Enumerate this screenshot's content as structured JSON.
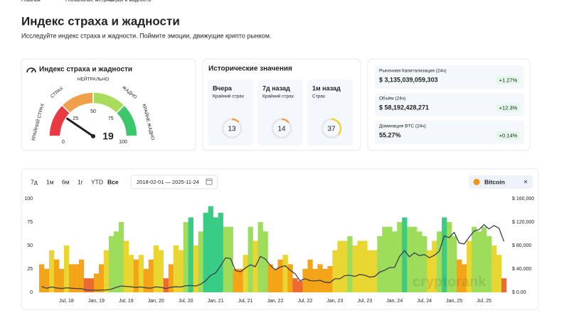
{
  "breadcrumb": [
    "Главная",
    "Глобальные метрики",
    "Страх и жадность"
  ],
  "title": "Индекс страха и жадности",
  "subtitle": "Исследуйте индекс страха и жадности. Поймите эмоции, движущие крипто рынком.",
  "gauge": {
    "title": "Индекс страха и жадности",
    "value": 19,
    "ticks": [
      0,
      25,
      50,
      75,
      100
    ],
    "colors": [
      "#ea3943",
      "#f0a04b",
      "#a8dc5a",
      "#3cc86a"
    ],
    "zones": [
      "КРАЙНИЙ СТРАХ",
      "СТРАХ",
      "НЕЙТРАЛЬНО",
      "ЖАДНО",
      "КРАЙНЕ ЖАДНО"
    ]
  },
  "historical": {
    "title": "Исторические значения",
    "items": [
      {
        "label": "Вчера",
        "status": "Крайний страх",
        "value": 13,
        "color": "#f0a04b"
      },
      {
        "label": "7д назад",
        "status": "Крайний страх",
        "value": 14,
        "color": "#f0a04b"
      },
      {
        "label": "1м назад",
        "status": "Страх",
        "value": 37,
        "color": "#f3d42f"
      }
    ]
  },
  "market": [
    {
      "label": "Рыночная Капитализация (24ч)",
      "value": "$ 3,135,039,059,303",
      "change": "+1.27%"
    },
    {
      "label": "Объём (24ч)",
      "value": "$ 58,192,428,271",
      "change": "+12.3%"
    },
    {
      "label": "Доминация BTC (24ч)",
      "value": "55.27%",
      "change": "+0.14%"
    }
  ],
  "chart_data": {
    "type": "bar",
    "ranges": [
      "7д",
      "1м",
      "6м",
      "1г",
      "YTD",
      "Все"
    ],
    "date_range": "2018-02-01 — 2025-11-24",
    "watermark": "cryptorank",
    "x": [
      "2018-02",
      "2018-03",
      "2018-04",
      "2018-05",
      "2018-06",
      "2018-07",
      "2018-08",
      "2018-09",
      "2018-10",
      "2018-11",
      "2018-12",
      "2019-01",
      "2019-02",
      "2019-03",
      "2019-04",
      "2019-05",
      "2019-06",
      "2019-07",
      "2019-08",
      "2019-09",
      "2019-10",
      "2019-11",
      "2019-12",
      "2020-01",
      "2020-02",
      "2020-03",
      "2020-04",
      "2020-05",
      "2020-06",
      "2020-07",
      "2020-08",
      "2020-09",
      "2020-10",
      "2020-11",
      "2020-12",
      "2021-01",
      "2021-02",
      "2021-03",
      "2021-04",
      "2021-05",
      "2021-06",
      "2021-07",
      "2021-08",
      "2021-09",
      "2021-10",
      "2021-11",
      "2021-12",
      "2022-01",
      "2022-02",
      "2022-03",
      "2022-04",
      "2022-05",
      "2022-06",
      "2022-07",
      "2022-08",
      "2022-09",
      "2022-10",
      "2022-11",
      "2022-12",
      "2023-01",
      "2023-02",
      "2023-03",
      "2023-04",
      "2023-05",
      "2023-06",
      "2023-07",
      "2023-08",
      "2023-09",
      "2023-10",
      "2023-11",
      "2023-12",
      "2024-01",
      "2024-02",
      "2024-03",
      "2024-04",
      "2024-05",
      "2024-06",
      "2024-07",
      "2024-08",
      "2024-09",
      "2024-10",
      "2024-11",
      "2024-12",
      "2025-01",
      "2025-02",
      "2025-03",
      "2025-04",
      "2025-05",
      "2025-06",
      "2025-07",
      "2025-08",
      "2025-09",
      "2025-10",
      "2025-11"
    ],
    "values": [
      30,
      25,
      45,
      35,
      25,
      50,
      30,
      30,
      35,
      15,
      15,
      20,
      30,
      45,
      60,
      65,
      75,
      55,
      40,
      35,
      40,
      25,
      35,
      50,
      45,
      15,
      30,
      50,
      45,
      75,
      80,
      50,
      65,
      85,
      92,
      80,
      85,
      70,
      70,
      25,
      25,
      40,
      70,
      55,
      75,
      65,
      30,
      25,
      35,
      40,
      30,
      15,
      12,
      25,
      35,
      25,
      30,
      25,
      28,
      45,
      55,
      55,
      60,
      50,
      55,
      55,
      45,
      45,
      60,
      70,
      70,
      65,
      75,
      80,
      70,
      70,
      65,
      60,
      45,
      55,
      65,
      80,
      75,
      60,
      35,
      30,
      55,
      70,
      65,
      70,
      60,
      50,
      40,
      15
    ],
    "colors": [
      "#ea5a1e",
      "#f29a00",
      "#e8d21c",
      "#93d94a",
      "#22c77a"
    ],
    "series": [
      {
        "name": "Bitcoin",
        "color": "#3a3f4b",
        "axis": "y2",
        "values": [
          10000,
          7000,
          9200,
          7500,
          6400,
          7700,
          7000,
          6600,
          6300,
          4000,
          3700,
          3450,
          3800,
          4100,
          5300,
          8500,
          10800,
          10100,
          9600,
          8300,
          9200,
          7600,
          7200,
          9350,
          8600,
          6400,
          8600,
          9450,
          9140,
          11300,
          11650,
          10780,
          13800,
          19700,
          29000,
          33100,
          45200,
          58900,
          57700,
          37300,
          35000,
          41500,
          47100,
          43800,
          61300,
          57000,
          46300,
          38500,
          43200,
          45500,
          37700,
          31800,
          19800,
          23300,
          20050,
          19400,
          20500,
          17200,
          16550,
          23100,
          23150,
          28500,
          29250,
          27200,
          30500,
          29200,
          25950,
          26970,
          34500,
          37700,
          42300,
          42600,
          61200,
          71300,
          60600,
          67500,
          62700,
          64600,
          59000,
          63300,
          70200,
          96400,
          93400,
          102400,
          84400,
          82500,
          94200,
          104600,
          107100,
          115700,
          108200,
          114000,
          109600,
          87000
        ]
      }
    ],
    "ylim": [
      0,
      100
    ],
    "yticks": [
      0,
      25,
      50,
      75,
      100
    ],
    "y2lim": [
      0,
      160000
    ],
    "y2ticks": [
      {
        "value": 0,
        "label": "$ 0.00"
      },
      {
        "value": 40000,
        "label": "$ 40,000"
      },
      {
        "value": 80000,
        "label": "$ 80,000"
      },
      {
        "value": 120000,
        "label": "$ 120,000"
      },
      {
        "value": 160000,
        "label": "$ 160,000"
      }
    ],
    "xticks": [
      {
        "value": "2018-07",
        "label": "Jul, 18"
      },
      {
        "value": "2019-01",
        "label": "Jan, 19"
      },
      {
        "value": "2019-07",
        "label": "Jul, 19"
      },
      {
        "value": "2020-01",
        "label": "Jan, 20"
      },
      {
        "value": "2020-07",
        "label": "Jul, 20"
      },
      {
        "value": "2021-01",
        "label": "Jan, 21"
      },
      {
        "value": "2021-07",
        "label": "Jul, 21"
      },
      {
        "value": "2022-01",
        "label": "Jan, 22"
      },
      {
        "value": "2022-07",
        "label": "Jul, 22"
      },
      {
        "value": "2023-01",
        "label": "Jan, 23"
      },
      {
        "value": "2023-07",
        "label": "Jul, 23"
      },
      {
        "value": "2024-01",
        "label": "Jan, 24"
      },
      {
        "value": "2024-07",
        "label": "Jul, 24"
      },
      {
        "value": "2025-01",
        "label": "Jan, 25"
      },
      {
        "value": "2025-07",
        "label": "Jul, 25"
      }
    ],
    "grid": false
  }
}
